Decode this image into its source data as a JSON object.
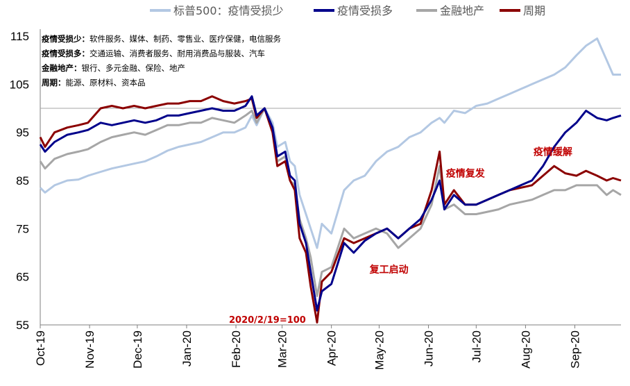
{
  "chart_data": {
    "type": "line",
    "title": "",
    "xlabel": "",
    "ylabel": "",
    "ylim": [
      55,
      115
    ],
    "yticks": [
      55,
      65,
      75,
      85,
      95,
      105,
      115
    ],
    "xticks": [
      "Oct-19",
      "Nov-19",
      "Dec-19",
      "Jan-20",
      "Feb-20",
      "Mar-20",
      "Apr-20",
      "May-20",
      "Jun-20",
      "Jul-20",
      "Aug-20",
      "Sep-20"
    ],
    "legend_position": "top",
    "grid": false,
    "baseline_value": 100,
    "baseline_label": "2020/2/19=100",
    "notes": [
      {
        "label": "疫情受损少",
        "text": "软件服务、媒体、制药、零售业、医疗保健，电信服务"
      },
      {
        "label": "疫情受损多",
        "text": "交通运输、消费者服务、耐用消费品与服装、汽车"
      },
      {
        "label": "金融地产",
        "text": "银行、多元金融、保险、地产"
      },
      {
        "label": "周期",
        "text": "能源、原材料、资本品"
      }
    ],
    "annotations": [
      {
        "text": "复工启动",
        "x": "2020-04-25",
        "y": 65.8
      },
      {
        "text": "疫情复发",
        "x": "2020-06-12",
        "y": 85.8
      },
      {
        "text": "疫情缓解",
        "x": "2020-08-06",
        "y": 90.3
      }
    ],
    "series": [
      {
        "name": "标普500：疫情受损少",
        "color": "#b3c8e3",
        "points": [
          [
            "2019-10-01",
            83.5
          ],
          [
            "2019-10-04",
            82.5
          ],
          [
            "2019-10-10",
            84
          ],
          [
            "2019-10-18",
            85
          ],
          [
            "2019-10-25",
            85.2
          ],
          [
            "2019-10-31",
            86
          ],
          [
            "2019-11-08",
            86.8
          ],
          [
            "2019-11-15",
            87.5
          ],
          [
            "2019-11-22",
            88
          ],
          [
            "2019-11-29",
            88.5
          ],
          [
            "2019-12-06",
            89
          ],
          [
            "2019-12-13",
            90
          ],
          [
            "2019-12-20",
            91.2
          ],
          [
            "2019-12-27",
            92
          ],
          [
            "2020-01-03",
            92.5
          ],
          [
            "2020-01-10",
            93
          ],
          [
            "2020-01-17",
            94
          ],
          [
            "2020-01-24",
            95
          ],
          [
            "2020-01-31",
            95
          ],
          [
            "2020-02-07",
            96
          ],
          [
            "2020-02-11",
            98.5
          ],
          [
            "2020-02-14",
            96.5
          ],
          [
            "2020-02-19",
            100
          ],
          [
            "2020-02-24",
            97
          ],
          [
            "2020-02-27",
            92
          ],
          [
            "2020-03-03",
            93
          ],
          [
            "2020-03-06",
            89
          ],
          [
            "2020-03-09",
            88
          ],
          [
            "2020-03-12",
            82
          ],
          [
            "2020-03-16",
            78
          ],
          [
            "2020-03-19",
            75
          ],
          [
            "2020-03-23",
            71
          ],
          [
            "2020-03-26",
            76
          ],
          [
            "2020-04-01",
            74
          ],
          [
            "2020-04-09",
            83
          ],
          [
            "2020-04-15",
            85
          ],
          [
            "2020-04-22",
            86
          ],
          [
            "2020-04-29",
            89
          ],
          [
            "2020-05-06",
            91
          ],
          [
            "2020-05-13",
            92
          ],
          [
            "2020-05-20",
            94
          ],
          [
            "2020-05-27",
            95
          ],
          [
            "2020-06-03",
            97
          ],
          [
            "2020-06-08",
            98
          ],
          [
            "2020-06-11",
            97
          ],
          [
            "2020-06-17",
            99.5
          ],
          [
            "2020-06-24",
            99
          ],
          [
            "2020-07-01",
            100.5
          ],
          [
            "2020-07-08",
            101
          ],
          [
            "2020-07-15",
            102
          ],
          [
            "2020-07-22",
            103
          ],
          [
            "2020-07-29",
            104
          ],
          [
            "2020-08-05",
            105
          ],
          [
            "2020-08-12",
            106
          ],
          [
            "2020-08-19",
            107
          ],
          [
            "2020-08-26",
            108.5
          ],
          [
            "2020-09-02",
            111
          ],
          [
            "2020-09-08",
            113
          ],
          [
            "2020-09-15",
            114.5
          ],
          [
            "2020-09-21",
            110
          ],
          [
            "2020-09-25",
            107
          ],
          [
            "2020-09-30",
            107
          ]
        ]
      },
      {
        "name": "疫情受损多",
        "color": "#00008b",
        "points": [
          [
            "2019-10-01",
            92.5
          ],
          [
            "2019-10-04",
            91
          ],
          [
            "2019-10-10",
            93
          ],
          [
            "2019-10-18",
            94.5
          ],
          [
            "2019-10-25",
            95
          ],
          [
            "2019-10-31",
            95.5
          ],
          [
            "2019-11-08",
            97
          ],
          [
            "2019-11-15",
            96.5
          ],
          [
            "2019-11-22",
            97
          ],
          [
            "2019-11-29",
            97.5
          ],
          [
            "2019-12-06",
            97
          ],
          [
            "2019-12-13",
            97.5
          ],
          [
            "2019-12-20",
            98.5
          ],
          [
            "2019-12-27",
            98.5
          ],
          [
            "2020-01-03",
            99
          ],
          [
            "2020-01-10",
            99.5
          ],
          [
            "2020-01-17",
            100
          ],
          [
            "2020-01-24",
            99.5
          ],
          [
            "2020-01-31",
            99.5
          ],
          [
            "2020-02-07",
            100.5
          ],
          [
            "2020-02-11",
            102.5
          ],
          [
            "2020-02-14",
            98.5
          ],
          [
            "2020-02-19",
            100
          ],
          [
            "2020-02-24",
            96
          ],
          [
            "2020-02-27",
            90
          ],
          [
            "2020-03-03",
            91
          ],
          [
            "2020-03-06",
            86
          ],
          [
            "2020-03-09",
            85
          ],
          [
            "2020-03-12",
            76
          ],
          [
            "2020-03-16",
            72
          ],
          [
            "2020-03-19",
            66
          ],
          [
            "2020-03-23",
            58
          ],
          [
            "2020-03-26",
            62
          ],
          [
            "2020-04-01",
            63.5
          ],
          [
            "2020-04-09",
            72
          ],
          [
            "2020-04-15",
            70
          ],
          [
            "2020-04-22",
            72.5
          ],
          [
            "2020-04-29",
            74
          ],
          [
            "2020-05-06",
            75
          ],
          [
            "2020-05-13",
            73
          ],
          [
            "2020-05-20",
            75
          ],
          [
            "2020-05-27",
            77
          ],
          [
            "2020-06-03",
            81
          ],
          [
            "2020-06-08",
            85
          ],
          [
            "2020-06-11",
            79
          ],
          [
            "2020-06-17",
            82
          ],
          [
            "2020-06-24",
            80
          ],
          [
            "2020-07-01",
            80
          ],
          [
            "2020-07-08",
            81
          ],
          [
            "2020-07-15",
            82
          ],
          [
            "2020-07-22",
            83
          ],
          [
            "2020-07-29",
            84
          ],
          [
            "2020-08-05",
            85
          ],
          [
            "2020-08-12",
            88
          ],
          [
            "2020-08-19",
            92
          ],
          [
            "2020-08-26",
            95
          ],
          [
            "2020-09-02",
            97
          ],
          [
            "2020-09-08",
            99.5
          ],
          [
            "2020-09-15",
            98
          ],
          [
            "2020-09-21",
            97.5
          ],
          [
            "2020-09-25",
            98
          ],
          [
            "2020-09-30",
            98.5
          ]
        ]
      },
      {
        "name": "金融地产",
        "color": "#a6a6a6",
        "points": [
          [
            "2019-10-01",
            89
          ],
          [
            "2019-10-04",
            87.5
          ],
          [
            "2019-10-10",
            89.5
          ],
          [
            "2019-10-18",
            90.5
          ],
          [
            "2019-10-25",
            91
          ],
          [
            "2019-10-31",
            91.5
          ],
          [
            "2019-11-08",
            93
          ],
          [
            "2019-11-15",
            94
          ],
          [
            "2019-11-22",
            94.5
          ],
          [
            "2019-11-29",
            95
          ],
          [
            "2019-12-06",
            94.5
          ],
          [
            "2019-12-13",
            95.5
          ],
          [
            "2019-12-20",
            96.5
          ],
          [
            "2019-12-27",
            96.5
          ],
          [
            "2020-01-03",
            97
          ],
          [
            "2020-01-10",
            97
          ],
          [
            "2020-01-17",
            98
          ],
          [
            "2020-01-24",
            97.5
          ],
          [
            "2020-01-31",
            97
          ],
          [
            "2020-02-07",
            98.5
          ],
          [
            "2020-02-11",
            99.5
          ],
          [
            "2020-02-14",
            97
          ],
          [
            "2020-02-19",
            100
          ],
          [
            "2020-02-24",
            95
          ],
          [
            "2020-02-27",
            89
          ],
          [
            "2020-03-03",
            90
          ],
          [
            "2020-03-06",
            85
          ],
          [
            "2020-03-09",
            84
          ],
          [
            "2020-03-12",
            77
          ],
          [
            "2020-03-16",
            73
          ],
          [
            "2020-03-19",
            69
          ],
          [
            "2020-03-23",
            61
          ],
          [
            "2020-03-26",
            66
          ],
          [
            "2020-04-01",
            67
          ],
          [
            "2020-04-09",
            75
          ],
          [
            "2020-04-15",
            73
          ],
          [
            "2020-04-22",
            74
          ],
          [
            "2020-04-29",
            75
          ],
          [
            "2020-05-06",
            74
          ],
          [
            "2020-05-13",
            71
          ],
          [
            "2020-05-20",
            73
          ],
          [
            "2020-05-27",
            75
          ],
          [
            "2020-06-03",
            80
          ],
          [
            "2020-06-08",
            88
          ],
          [
            "2020-06-11",
            79
          ],
          [
            "2020-06-17",
            80
          ],
          [
            "2020-06-24",
            78
          ],
          [
            "2020-07-01",
            78
          ],
          [
            "2020-07-08",
            78.5
          ],
          [
            "2020-07-15",
            79
          ],
          [
            "2020-07-22",
            80
          ],
          [
            "2020-07-29",
            80.5
          ],
          [
            "2020-08-05",
            81
          ],
          [
            "2020-08-12",
            82
          ],
          [
            "2020-08-19",
            83
          ],
          [
            "2020-08-26",
            83
          ],
          [
            "2020-09-02",
            84
          ],
          [
            "2020-09-08",
            84
          ],
          [
            "2020-09-15",
            84
          ],
          [
            "2020-09-21",
            82
          ],
          [
            "2020-09-25",
            83
          ],
          [
            "2020-09-30",
            82
          ]
        ]
      },
      {
        "name": "周期",
        "color": "#8b0000",
        "points": [
          [
            "2019-10-01",
            94
          ],
          [
            "2019-10-04",
            92
          ],
          [
            "2019-10-10",
            95
          ],
          [
            "2019-10-18",
            96
          ],
          [
            "2019-10-25",
            96.5
          ],
          [
            "2019-10-31",
            97
          ],
          [
            "2019-11-08",
            100
          ],
          [
            "2019-11-15",
            100.5
          ],
          [
            "2019-11-22",
            100
          ],
          [
            "2019-11-29",
            100.5
          ],
          [
            "2019-12-06",
            100
          ],
          [
            "2019-12-13",
            100.5
          ],
          [
            "2019-12-20",
            101
          ],
          [
            "2019-12-27",
            101
          ],
          [
            "2020-01-03",
            101.5
          ],
          [
            "2020-01-10",
            101.5
          ],
          [
            "2020-01-17",
            102.5
          ],
          [
            "2020-01-24",
            101.5
          ],
          [
            "2020-01-31",
            101
          ],
          [
            "2020-02-07",
            101.5
          ],
          [
            "2020-02-11",
            102
          ],
          [
            "2020-02-14",
            98
          ],
          [
            "2020-02-19",
            100
          ],
          [
            "2020-02-24",
            95
          ],
          [
            "2020-02-27",
            88
          ],
          [
            "2020-03-03",
            89
          ],
          [
            "2020-03-06",
            85
          ],
          [
            "2020-03-09",
            83
          ],
          [
            "2020-03-12",
            73
          ],
          [
            "2020-03-16",
            70
          ],
          [
            "2020-03-19",
            63
          ],
          [
            "2020-03-23",
            55.5
          ],
          [
            "2020-03-26",
            64
          ],
          [
            "2020-04-01",
            66
          ],
          [
            "2020-04-09",
            73
          ],
          [
            "2020-04-15",
            72
          ],
          [
            "2020-04-22",
            73
          ],
          [
            "2020-04-29",
            74
          ],
          [
            "2020-05-06",
            75
          ],
          [
            "2020-05-13",
            73
          ],
          [
            "2020-05-20",
            75
          ],
          [
            "2020-05-27",
            76
          ],
          [
            "2020-06-03",
            83
          ],
          [
            "2020-06-08",
            91
          ],
          [
            "2020-06-11",
            80
          ],
          [
            "2020-06-17",
            83
          ],
          [
            "2020-06-24",
            80
          ],
          [
            "2020-07-01",
            80
          ],
          [
            "2020-07-08",
            81
          ],
          [
            "2020-07-15",
            82
          ],
          [
            "2020-07-22",
            83
          ],
          [
            "2020-07-29",
            83.5
          ],
          [
            "2020-08-05",
            84
          ],
          [
            "2020-08-12",
            86
          ],
          [
            "2020-08-19",
            88
          ],
          [
            "2020-08-26",
            86.5
          ],
          [
            "2020-09-02",
            86
          ],
          [
            "2020-09-08",
            87
          ],
          [
            "2020-09-15",
            86
          ],
          [
            "2020-09-21",
            85
          ],
          [
            "2020-09-25",
            85.5
          ],
          [
            "2020-09-30",
            85
          ]
        ]
      }
    ]
  }
}
